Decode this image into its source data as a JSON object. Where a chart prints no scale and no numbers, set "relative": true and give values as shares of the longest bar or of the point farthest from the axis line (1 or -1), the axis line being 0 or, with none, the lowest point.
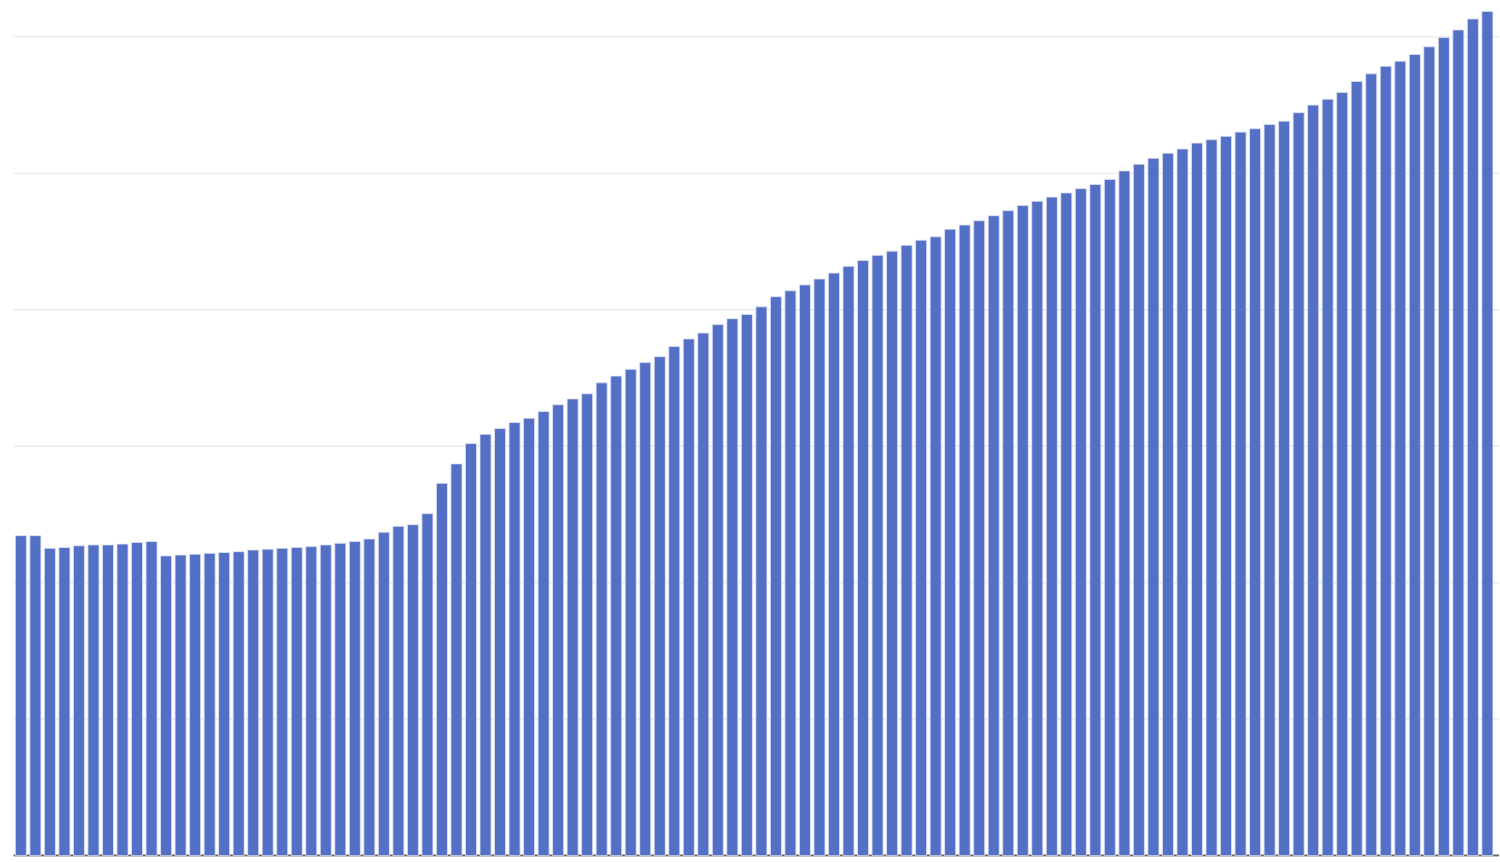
{
  "chart_data": {
    "type": "bar",
    "relative": true,
    "grid": "y",
    "color": "#5470c6",
    "categories": [
      null,
      null,
      null,
      null,
      null,
      null,
      null,
      null,
      null,
      null,
      null,
      null,
      null,
      null,
      null,
      null,
      null,
      null,
      null,
      null,
      null,
      null,
      null,
      null,
      null,
      null,
      null,
      null,
      null,
      null,
      null,
      null,
      null,
      null,
      null,
      null,
      null,
      null,
      null,
      null,
      null,
      null,
      null,
      null,
      null,
      null,
      null,
      null,
      null,
      null,
      null,
      null,
      null,
      null,
      null,
      null,
      null,
      null,
      null,
      null,
      null,
      null,
      null,
      null,
      null,
      null,
      null,
      null,
      null,
      null,
      null,
      null,
      null,
      null,
      null,
      null,
      null,
      null,
      null,
      null,
      null,
      null,
      null,
      null,
      null,
      null,
      null,
      null,
      null,
      null,
      null,
      null,
      null,
      null,
      null,
      null,
      null,
      null,
      null,
      null,
      null,
      null
    ],
    "values": [
      0.379,
      0.379,
      0.364,
      0.365,
      0.367,
      0.368,
      0.368,
      0.369,
      0.371,
      0.372,
      0.355,
      0.356,
      0.357,
      0.358,
      0.359,
      0.36,
      0.362,
      0.363,
      0.364,
      0.365,
      0.366,
      0.368,
      0.37,
      0.372,
      0.375,
      0.383,
      0.39,
      0.392,
      0.405,
      0.441,
      0.464,
      0.488,
      0.499,
      0.506,
      0.513,
      0.518,
      0.526,
      0.534,
      0.541,
      0.547,
      0.56,
      0.568,
      0.576,
      0.584,
      0.591,
      0.603,
      0.612,
      0.619,
      0.629,
      0.636,
      0.641,
      0.65,
      0.662,
      0.669,
      0.676,
      0.683,
      0.69,
      0.698,
      0.705,
      0.711,
      0.716,
      0.723,
      0.729,
      0.733,
      0.742,
      0.747,
      0.752,
      0.758,
      0.764,
      0.77,
      0.775,
      0.78,
      0.785,
      0.79,
      0.795,
      0.801,
      0.811,
      0.819,
      0.826,
      0.832,
      0.837,
      0.844,
      0.848,
      0.852,
      0.857,
      0.861,
      0.866,
      0.87,
      0.88,
      0.889,
      0.896,
      0.904,
      0.917,
      0.926,
      0.935,
      0.941,
      0.949,
      0.958,
      0.969,
      0.978,
      0.991,
      1
    ]
  }
}
